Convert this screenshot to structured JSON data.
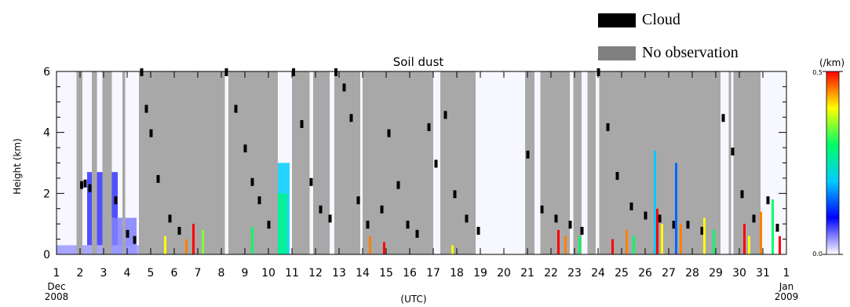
{
  "chart_data": {
    "type": "heatmap",
    "title": "Soil dust",
    "ylabel": "Height (km)",
    "xlabel": "(UTC)",
    "colorbar": {
      "unit": "(/km)",
      "max_label": "0.5",
      "min_label": "0.0",
      "range": [
        0.0,
        0.5
      ],
      "colors": [
        "#ffffff",
        "#0000ff",
        "#00ccff",
        "#00ff66",
        "#ffff00",
        "#ff0000"
      ]
    },
    "ylim": [
      0,
      6
    ],
    "y_ticks": [
      "0",
      "2",
      "4",
      "6"
    ],
    "xlim": [
      1,
      32
    ],
    "x_ticks": [
      "1",
      "2",
      "3",
      "4",
      "5",
      "6",
      "7",
      "8",
      "9",
      "10",
      "11",
      "12",
      "13",
      "14",
      "15",
      "16",
      "17",
      "18",
      "19",
      "20",
      "21",
      "22",
      "23",
      "24",
      "25",
      "26",
      "27",
      "28",
      "29",
      "30",
      "31",
      "1"
    ],
    "x_start_label": {
      "month": "Dec",
      "year": "2008"
    },
    "x_end_label": {
      "month": "Jan",
      "year": "2009"
    },
    "legend": [
      {
        "label": "Cloud",
        "color": "#000000"
      },
      {
        "label": "No observation",
        "color": "#808080"
      }
    ],
    "no_observation_periods": [
      [
        1.85,
        2.1
      ],
      [
        2.5,
        2.72
      ],
      [
        2.95,
        3.35
      ],
      [
        3.8,
        3.92
      ],
      [
        4.5,
        8.15
      ],
      [
        8.3,
        10.4
      ],
      [
        11.0,
        11.75
      ],
      [
        11.9,
        12.6
      ],
      [
        12.8,
        13.9
      ],
      [
        14.0,
        17.0
      ],
      [
        17.3,
        18.8
      ],
      [
        20.9,
        21.3
      ],
      [
        21.55,
        22.8
      ],
      [
        22.95,
        23.3
      ],
      [
        23.55,
        23.9
      ],
      [
        24.05,
        29.2
      ],
      [
        29.55,
        29.65
      ],
      [
        29.75,
        30.9
      ]
    ],
    "gray_color": "#a8a8a8",
    "cloud_traces": [
      [
        2.05,
        2.3
      ],
      [
        2.2,
        2.35
      ],
      [
        2.4,
        2.2
      ],
      [
        3.5,
        1.8
      ],
      [
        4.0,
        0.7
      ],
      [
        4.3,
        0.5
      ],
      [
        4.6,
        6.0
      ],
      [
        4.8,
        4.8
      ],
      [
        5.0,
        4.0
      ],
      [
        5.3,
        2.5
      ],
      [
        5.8,
        1.2
      ],
      [
        6.2,
        0.8
      ],
      [
        8.2,
        6.0
      ],
      [
        8.6,
        4.8
      ],
      [
        9.0,
        3.5
      ],
      [
        9.3,
        2.4
      ],
      [
        9.6,
        1.8
      ],
      [
        10.0,
        1.0
      ],
      [
        11.05,
        6.0
      ],
      [
        11.4,
        4.3
      ],
      [
        11.8,
        2.4
      ],
      [
        12.2,
        1.5
      ],
      [
        12.6,
        1.2
      ],
      [
        12.85,
        6.0
      ],
      [
        13.2,
        5.5
      ],
      [
        13.5,
        4.5
      ],
      [
        13.8,
        1.8
      ],
      [
        14.2,
        1.0
      ],
      [
        14.8,
        1.5
      ],
      [
        15.1,
        4.0
      ],
      [
        15.5,
        2.3
      ],
      [
        15.9,
        1.0
      ],
      [
        16.3,
        0.7
      ],
      [
        16.8,
        4.2
      ],
      [
        17.1,
        3.0
      ],
      [
        17.5,
        4.6
      ],
      [
        17.9,
        2.0
      ],
      [
        18.4,
        1.2
      ],
      [
        18.9,
        0.8
      ],
      [
        21.0,
        3.3
      ],
      [
        21.6,
        1.5
      ],
      [
        22.2,
        1.2
      ],
      [
        22.8,
        1.0
      ],
      [
        23.3,
        0.8
      ],
      [
        24.0,
        6.0
      ],
      [
        24.4,
        4.2
      ],
      [
        24.8,
        2.6
      ],
      [
        25.4,
        1.6
      ],
      [
        26.0,
        1.3
      ],
      [
        26.6,
        1.2
      ],
      [
        27.2,
        1.0
      ],
      [
        27.8,
        1.0
      ],
      [
        28.4,
        0.8
      ],
      [
        29.3,
        4.5
      ],
      [
        29.7,
        3.4
      ],
      [
        30.1,
        2.0
      ],
      [
        30.6,
        1.2
      ],
      [
        31.2,
        1.8
      ],
      [
        31.6,
        0.9
      ]
    ],
    "dust_features": [
      {
        "x": [
          2.3,
          3.6
        ],
        "y": [
          0.3,
          2.7
        ],
        "value": 0.08
      },
      {
        "x": [
          3.0,
          4.4
        ],
        "y": [
          0.0,
          1.2
        ],
        "value": 0.05
      },
      {
        "x": [
          10.0,
          10.9
        ],
        "y": [
          0.0,
          3.0
        ],
        "value": 0.2
      },
      {
        "x": [
          10.1,
          10.8
        ],
        "y": [
          0.0,
          2.0
        ],
        "value": 0.28
      },
      {
        "x": [
          1.0,
          4.5
        ],
        "y": [
          0.0,
          0.3
        ],
        "value": 0.04
      }
    ],
    "dust_spikes": [
      [
        5.6,
        0.6,
        0.4
      ],
      [
        6.5,
        0.5,
        0.45
      ],
      [
        6.8,
        1.0,
        0.5
      ],
      [
        7.2,
        0.8,
        0.35
      ],
      [
        9.3,
        0.9,
        0.3
      ],
      [
        14.3,
        0.6,
        0.45
      ],
      [
        14.9,
        0.4,
        0.5
      ],
      [
        17.8,
        0.3,
        0.4
      ],
      [
        22.3,
        0.8,
        0.5
      ],
      [
        22.6,
        0.6,
        0.45
      ],
      [
        23.2,
        0.6,
        0.3
      ],
      [
        24.6,
        0.5,
        0.5
      ],
      [
        25.2,
        0.8,
        0.45
      ],
      [
        25.5,
        0.6,
        0.3
      ],
      [
        26.4,
        3.4,
        0.2
      ],
      [
        26.5,
        1.5,
        0.5
      ],
      [
        26.7,
        1.0,
        0.4
      ],
      [
        27.3,
        3.0,
        0.15
      ],
      [
        27.5,
        1.0,
        0.45
      ],
      [
        28.5,
        1.2,
        0.4
      ],
      [
        28.9,
        0.8,
        0.3
      ],
      [
        30.2,
        1.0,
        0.5
      ],
      [
        30.4,
        0.6,
        0.4
      ],
      [
        30.9,
        1.4,
        0.45
      ],
      [
        31.4,
        1.8,
        0.3
      ],
      [
        31.7,
        0.6,
        0.5
      ]
    ]
  }
}
